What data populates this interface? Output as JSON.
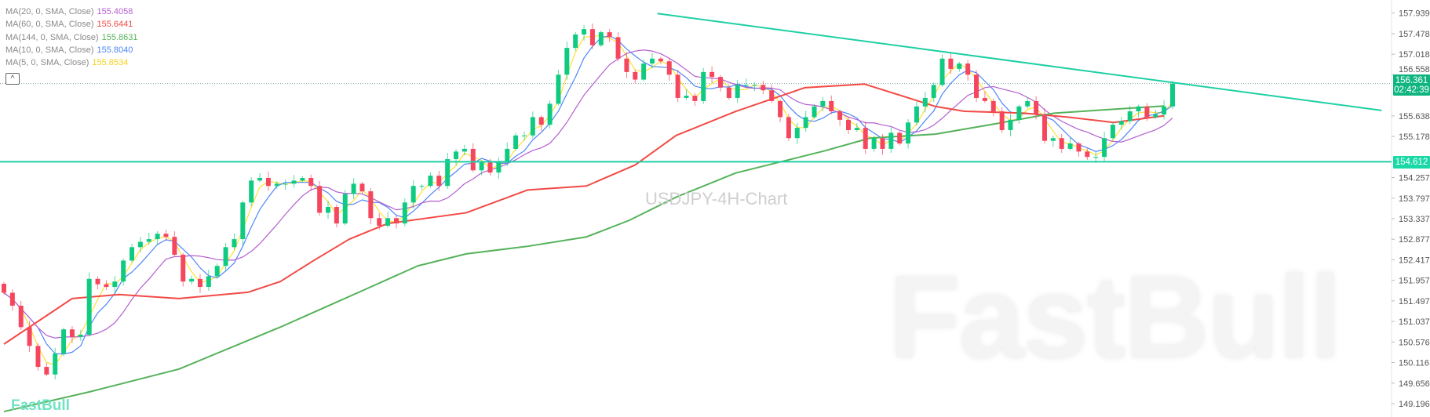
{
  "legend": [
    {
      "label": "MA(20, 0, SMA, Close)",
      "value": "155.4058",
      "color": "#b45fd0"
    },
    {
      "label": "MA(60, 0, SMA, Close)",
      "value": "155.6441",
      "color": "#f24a45"
    },
    {
      "label": "MA(144, 0, SMA, Close)",
      "value": "155.8631",
      "color": "#55b25a"
    },
    {
      "label": "MA(10, 0, SMA, Close)",
      "value": "155.8040",
      "color": "#4f86f7"
    },
    {
      "label": "MA(5, 0, SMA, Close)",
      "value": "155.8534",
      "color": "#ffe033"
    }
  ],
  "collapse_icon": "chevron-up-icon",
  "watermark_title": "USDJPY-4H-Chart",
  "watermark_logo": "FastBull",
  "logo_small": "FastBull",
  "last_price_tag": {
    "price": "156.361",
    "countdown": "02:42:39",
    "color": "#0fb57f"
  },
  "level_tag": {
    "price": "154.612",
    "color": "#1ad9a7"
  },
  "colors": {
    "up": "#0ecb81",
    "down": "#f6465d",
    "trendline": "#1fcfa3",
    "price_line": "#7fa7a0"
  },
  "chart_data": {
    "type": "candlestick",
    "symbol": "USDJPY",
    "timeframe": "4H",
    "y_axis": {
      "ticks": [
        "157.939",
        "157.478",
        "157.018",
        "156.558",
        "155.638",
        "155.178",
        "154.257",
        "153.797",
        "153.337",
        "152.877",
        "152.417",
        "151.957",
        "151.497",
        "151.037",
        "150.576",
        "150.116",
        "149.656",
        "149.196"
      ],
      "range": [
        149.0,
        158.2
      ]
    },
    "closes": [
      151.68,
      151.39,
      150.91,
      150.49,
      150.02,
      149.85,
      150.32,
      150.86,
      150.69,
      150.74,
      151.99,
      151.87,
      151.81,
      151.93,
      152.4,
      152.7,
      152.82,
      152.88,
      153.0,
      152.93,
      152.53,
      151.93,
      151.99,
      151.81,
      152.05,
      152.28,
      152.7,
      152.88,
      153.7,
      154.19,
      154.25,
      154.07,
      154.12,
      154.12,
      154.19,
      154.25,
      154.07,
      153.47,
      153.6,
      153.23,
      153.89,
      154.12,
      153.95,
      153.35,
      153.18,
      153.35,
      153.23,
      153.7,
      154.07,
      154.07,
      154.3,
      154.07,
      154.67,
      154.84,
      154.9,
      154.42,
      154.6,
      154.37,
      154.6,
      154.9,
      155.2,
      155.2,
      155.61,
      155.44,
      155.91,
      156.56,
      157.16,
      157.46,
      157.58,
      157.22,
      157.51,
      157.4,
      156.92,
      156.62,
      156.45,
      156.81,
      156.92,
      156.86,
      156.56,
      156.04,
      156.09,
      155.97,
      156.62,
      156.51,
      156.27,
      156.04,
      156.33,
      156.33,
      156.33,
      156.21,
      155.97,
      155.61,
      155.14,
      155.37,
      155.61,
      155.85,
      155.97,
      155.74,
      155.55,
      155.32,
      155.37,
      154.9,
      155.14,
      154.9,
      155.26,
      155.02,
      155.49,
      155.85,
      156.04,
      156.33,
      156.92,
      156.69,
      156.81,
      156.56,
      156.04,
      155.97,
      155.74,
      155.32,
      155.55,
      155.85,
      155.97,
      155.67,
      155.08,
      155.14,
      154.9,
      155.02,
      154.84,
      154.72,
      154.72,
      155.14,
      155.44,
      155.52,
      155.74,
      155.85,
      155.61,
      155.67,
      155.85,
      156.361
    ],
    "moving_averages": [
      {
        "name": "MA(5, 0, SMA, Close)",
        "period": 5,
        "color": "#ffe033"
      },
      {
        "name": "MA(10, 0, SMA, Close)",
        "period": 10,
        "color": "#4f86f7"
      },
      {
        "name": "MA(20, 0, SMA, Close)",
        "period": 20,
        "color": "#b45fd0"
      },
      {
        "name": "MA(60, 0, SMA, Close)",
        "period": 60,
        "color": "#f24a45",
        "points": [
          [
            0,
            150.53
          ],
          [
            8,
            151.55
          ],
          [
            13.5,
            151.64
          ],
          [
            20.5,
            151.55
          ],
          [
            28.6,
            151.69
          ],
          [
            32.4,
            151.93
          ],
          [
            36.3,
            152.4
          ],
          [
            40.5,
            152.88
          ],
          [
            45,
            153.23
          ],
          [
            54.2,
            153.47
          ],
          [
            61.4,
            153.98
          ],
          [
            68.3,
            154.07
          ],
          [
            74,
            154.54
          ],
          [
            78.8,
            155.2
          ],
          [
            85.8,
            155.74
          ],
          [
            93.9,
            156.27
          ],
          [
            100.9,
            156.35
          ],
          [
            109.2,
            155.85
          ],
          [
            112.6,
            155.74
          ],
          [
            119.6,
            155.7
          ],
          [
            124.8,
            155.61
          ],
          [
            130.1,
            155.49
          ],
          [
            136,
            155.64
          ]
        ]
      },
      {
        "name": "MA(144, 0, SMA, Close)",
        "period": 144,
        "color": "#55b25a",
        "points": [
          [
            0,
            149.02
          ],
          [
            10,
            149.46
          ],
          [
            20.5,
            149.97
          ],
          [
            32.4,
            150.91
          ],
          [
            41.6,
            151.69
          ],
          [
            48.5,
            152.28
          ],
          [
            54.2,
            152.55
          ],
          [
            61.4,
            152.72
          ],
          [
            68.3,
            152.93
          ],
          [
            73.3,
            153.3
          ],
          [
            78.8,
            153.82
          ],
          [
            85.8,
            154.36
          ],
          [
            96.3,
            154.86
          ],
          [
            101.5,
            155.14
          ],
          [
            109.2,
            155.23
          ],
          [
            116.2,
            155.46
          ],
          [
            123.1,
            155.7
          ],
          [
            136,
            155.86
          ]
        ]
      }
    ],
    "trendline": [
      [
        76.6,
        157.93
      ],
      [
        161.5,
        155.76
      ]
    ],
    "horizontal_level": 154.612,
    "last_price": 156.361
  }
}
